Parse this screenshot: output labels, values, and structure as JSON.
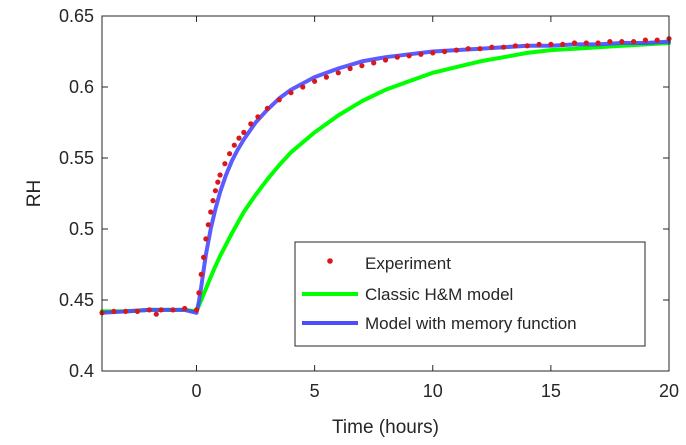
{
  "chart_data": {
    "type": "line",
    "title": "",
    "xlabel": "Time (hours)",
    "ylabel": "RH",
    "xlim": [
      -4,
      20
    ],
    "ylim": [
      0.4,
      0.65
    ],
    "xticks": [
      0,
      5,
      10,
      15,
      20
    ],
    "xtick_labels": [
      "0",
      "5",
      "10",
      "15",
      "20"
    ],
    "yticks": [
      0.4,
      0.45,
      0.5,
      0.55,
      0.6,
      0.65
    ],
    "ytick_labels": [
      "0.4",
      "0.45",
      "0.5",
      "0.55",
      "0.6",
      "0.65"
    ],
    "grid": false,
    "legend_position": "bottom-right",
    "series": [
      {
        "name": "Experiment",
        "style": "markers",
        "color": "#d7191c",
        "x": [
          -4.0,
          -3.5,
          -3.0,
          -2.5,
          -2.0,
          -1.7,
          -1.5,
          -1.0,
          -0.5,
          0.0,
          0.1,
          0.2,
          0.3,
          0.4,
          0.5,
          0.6,
          0.7,
          0.8,
          0.9,
          1.0,
          1.2,
          1.4,
          1.6,
          1.8,
          2.0,
          2.3,
          2.6,
          3.0,
          3.5,
          4.0,
          4.5,
          5.0,
          5.5,
          6.0,
          6.5,
          7.0,
          7.5,
          8.0,
          8.5,
          9.0,
          9.5,
          10.0,
          10.5,
          11.0,
          11.5,
          12.0,
          12.5,
          13.0,
          13.5,
          14.0,
          14.5,
          15.0,
          15.5,
          16.0,
          16.5,
          17.0,
          17.5,
          18.0,
          18.5,
          19.0,
          19.5,
          20.0
        ],
        "y": [
          0.441,
          0.442,
          0.442,
          0.442,
          0.443,
          0.44,
          0.443,
          0.443,
          0.444,
          0.443,
          0.455,
          0.468,
          0.48,
          0.493,
          0.503,
          0.512,
          0.52,
          0.527,
          0.533,
          0.538,
          0.546,
          0.553,
          0.559,
          0.564,
          0.568,
          0.574,
          0.579,
          0.585,
          0.591,
          0.596,
          0.6,
          0.604,
          0.607,
          0.61,
          0.613,
          0.615,
          0.617,
          0.619,
          0.621,
          0.622,
          0.623,
          0.624,
          0.625,
          0.626,
          0.627,
          0.627,
          0.628,
          0.628,
          0.629,
          0.629,
          0.63,
          0.63,
          0.63,
          0.631,
          0.631,
          0.631,
          0.632,
          0.632,
          0.632,
          0.633,
          0.633,
          0.634
        ]
      },
      {
        "name": "Classic H&M model",
        "style": "line",
        "color": "#00ff00",
        "x": [
          -4.0,
          -3.0,
          -2.0,
          -1.0,
          -0.5,
          0.0,
          0.1,
          0.25,
          0.5,
          0.75,
          1.0,
          1.5,
          2.0,
          2.5,
          3.0,
          3.5,
          4.0,
          5.0,
          6.0,
          7.0,
          8.0,
          9.0,
          10.0,
          11.0,
          12.0,
          13.0,
          14.0,
          15.0,
          16.0,
          17.0,
          18.0,
          19.0,
          20.0
        ],
        "y": [
          0.442,
          0.442,
          0.443,
          0.443,
          0.443,
          0.442,
          0.446,
          0.452,
          0.462,
          0.472,
          0.481,
          0.497,
          0.512,
          0.524,
          0.535,
          0.545,
          0.554,
          0.568,
          0.58,
          0.59,
          0.598,
          0.604,
          0.61,
          0.614,
          0.618,
          0.621,
          0.624,
          0.626,
          0.627,
          0.628,
          0.629,
          0.63,
          0.631
        ]
      },
      {
        "name": "Model with memory function",
        "style": "line",
        "color": "#4d4dff",
        "x": [
          -4.0,
          -3.0,
          -2.0,
          -1.0,
          -0.5,
          0.0,
          0.1,
          0.2,
          0.3,
          0.4,
          0.5,
          0.6,
          0.8,
          1.0,
          1.25,
          1.5,
          1.75,
          2.0,
          2.5,
          3.0,
          3.5,
          4.0,
          5.0,
          6.0,
          7.0,
          8.0,
          9.0,
          10.0,
          11.0,
          12.0,
          13.0,
          14.0,
          15.0,
          16.0,
          17.0,
          18.0,
          19.0,
          20.0
        ],
        "y": [
          0.441,
          0.442,
          0.443,
          0.443,
          0.443,
          0.441,
          0.449,
          0.459,
          0.471,
          0.482,
          0.491,
          0.5,
          0.514,
          0.526,
          0.538,
          0.548,
          0.556,
          0.563,
          0.575,
          0.584,
          0.592,
          0.598,
          0.607,
          0.613,
          0.618,
          0.621,
          0.623,
          0.625,
          0.626,
          0.627,
          0.628,
          0.629,
          0.629,
          0.63,
          0.63,
          0.631,
          0.631,
          0.632
        ]
      }
    ]
  }
}
